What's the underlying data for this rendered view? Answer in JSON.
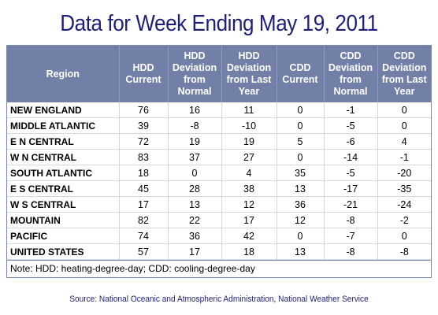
{
  "chart_data": {
    "type": "table",
    "title": "Data for Week Ending May 19, 2011",
    "columns": [
      "Region",
      "HDD Current",
      "HDD Deviation from Normal",
      "HDD Deviation from Last Year",
      "CDD Current",
      "CDD Deviation from Normal",
      "CDD Deviation from Last Year"
    ],
    "rows": [
      [
        "NEW ENGLAND",
        "76",
        "16",
        "11",
        "0",
        "-1",
        "0"
      ],
      [
        "MIDDLE ATLANTIC",
        "39",
        "-8",
        "-10",
        "0",
        "-5",
        "0"
      ],
      [
        "E N CENTRAL",
        "72",
        "19",
        "19",
        "5",
        "-6",
        "4"
      ],
      [
        "W N CENTRAL",
        "83",
        "37",
        "27",
        "0",
        "-14",
        "-1"
      ],
      [
        "SOUTH ATLANTIC",
        "18",
        "0",
        "4",
        "35",
        "-5",
        "-20"
      ],
      [
        "E S CENTRAL",
        "45",
        "28",
        "38",
        "13",
        "-17",
        "-35"
      ],
      [
        "W S CENTRAL",
        "17",
        "13",
        "12",
        "36",
        "-21",
        "-24"
      ],
      [
        "MOUNTAIN",
        "82",
        "22",
        "17",
        "12",
        "-8",
        "-2"
      ],
      [
        "PACIFIC",
        "74",
        "36",
        "42",
        "0",
        "-7",
        "0"
      ],
      [
        "UNITED STATES",
        "57",
        "17",
        "18",
        "13",
        "-8",
        "-8"
      ]
    ],
    "note": "Note: HDD: heating-degree-day; CDD: cooling-degree-day",
    "source": "Source:  National Oceanic and Atmospheric Administration, National Weather Service"
  },
  "colors": {
    "header_bg": "#7280a8",
    "title_color": "#1f1f7a"
  }
}
